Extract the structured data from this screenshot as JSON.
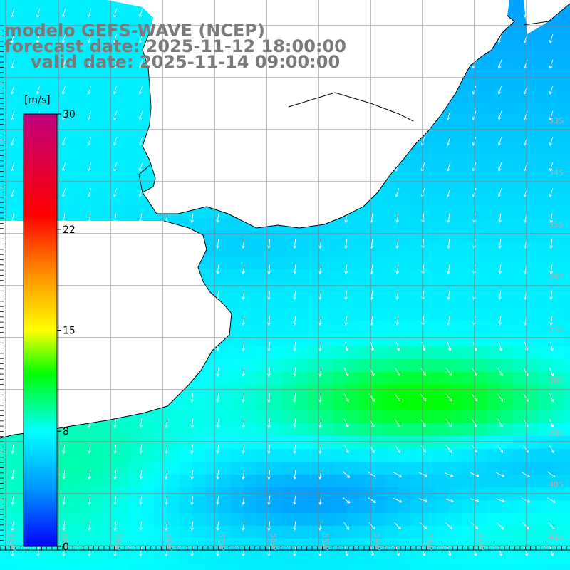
{
  "title": {
    "model": "modelo GEFS-WAVE (NCEP)",
    "forecast": "forecast date: 2025-11-12 18:00:00",
    "valid": "valid date: 2025-11-14 09:00:00"
  },
  "colorbar": {
    "unit": "[m/s]",
    "ticks": [
      "30",
      "22",
      "15",
      "8",
      "0"
    ],
    "tick_values": [
      30,
      22,
      15,
      8,
      0
    ],
    "min": 0,
    "max": 30,
    "colors": [
      "#0000ff",
      "#0096ff",
      "#00ffff",
      "#00ff00",
      "#ffff00",
      "#ff8c00",
      "#ff0000",
      "#c00080"
    ]
  },
  "map": {
    "lon_labels": [
      "61W",
      "60W",
      "59W",
      "58W",
      "57W",
      "56W",
      "55W",
      "54W",
      "53W",
      "52W"
    ],
    "lat_labels": [
      "33S",
      "34S",
      "35S",
      "36S",
      "37S",
      "38S",
      "39S",
      "40S",
      "41S"
    ],
    "land_color": "#ffffff",
    "coast_color": "#000000",
    "grid_color": "#808080",
    "arrow_color": "#ffffff"
  }
}
